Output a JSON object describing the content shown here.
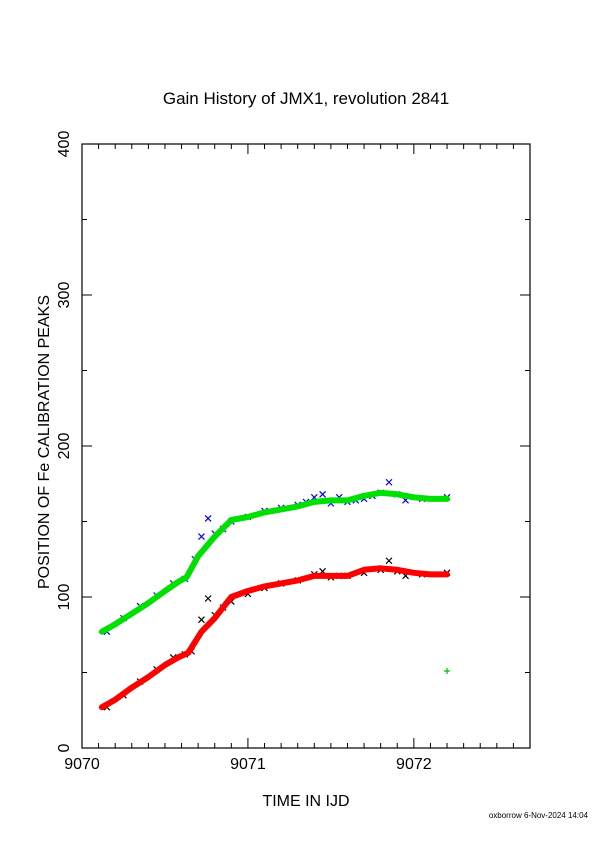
{
  "chart_data": {
    "type": "line",
    "title": "Gain History of JMX1, revolution 2841",
    "xlabel": "TIME IN IJD",
    "ylabel": "POSITION OF Fe CALIBRATION PEAKS",
    "xlim": [
      9070,
      9072.7
    ],
    "ylim": [
      0,
      400
    ],
    "x_ticks": [
      "9070",
      "9071",
      "9072"
    ],
    "y_ticks": [
      "0",
      "100",
      "200",
      "300",
      "400"
    ],
    "grid": false,
    "series": [
      {
        "color": "#0000ff",
        "marker": "x",
        "points": [
          [
            9070.15,
            77
          ],
          [
            9070.25,
            86
          ],
          [
            9070.35,
            94
          ],
          [
            9070.45,
            101
          ],
          [
            9070.55,
            109
          ],
          [
            9070.62,
            112
          ],
          [
            9070.68,
            125
          ],
          [
            9070.72,
            140
          ],
          [
            9070.76,
            152
          ],
          [
            9070.8,
            142
          ],
          [
            9070.85,
            145
          ],
          [
            9070.9,
            150
          ],
          [
            9071.0,
            153
          ],
          [
            9071.1,
            157
          ],
          [
            9071.2,
            159
          ],
          [
            9071.3,
            161
          ],
          [
            9071.35,
            163
          ],
          [
            9071.4,
            166
          ],
          [
            9071.45,
            168
          ],
          [
            9071.5,
            162
          ],
          [
            9071.55,
            166
          ],
          [
            9071.6,
            163
          ],
          [
            9071.65,
            164
          ],
          [
            9071.7,
            165
          ],
          [
            9071.75,
            167
          ],
          [
            9071.8,
            169
          ],
          [
            9071.85,
            176
          ],
          [
            9071.9,
            168
          ],
          [
            9071.95,
            164
          ],
          [
            9072.05,
            165
          ],
          [
            9072.2,
            166
          ]
        ]
      },
      {
        "color": "#00e000",
        "marker": "line",
        "points": [
          [
            9070.12,
            77
          ],
          [
            9070.2,
            82
          ],
          [
            9070.3,
            89
          ],
          [
            9070.4,
            96
          ],
          [
            9070.5,
            104
          ],
          [
            9070.58,
            110
          ],
          [
            9070.63,
            113
          ],
          [
            9070.7,
            127
          ],
          [
            9070.8,
            140
          ],
          [
            9070.9,
            151
          ],
          [
            9071.0,
            153
          ],
          [
            9071.1,
            156
          ],
          [
            9071.2,
            158
          ],
          [
            9071.3,
            160
          ],
          [
            9071.4,
            163
          ],
          [
            9071.5,
            164
          ],
          [
            9071.6,
            164
          ],
          [
            9071.7,
            167
          ],
          [
            9071.8,
            169
          ],
          [
            9071.9,
            168
          ],
          [
            9072.0,
            166
          ],
          [
            9072.1,
            165
          ],
          [
            9072.2,
            165
          ]
        ]
      },
      {
        "color": "#000000",
        "marker": "x",
        "points": [
          [
            9070.15,
            27
          ],
          [
            9070.25,
            35
          ],
          [
            9070.35,
            44
          ],
          [
            9070.45,
            52
          ],
          [
            9070.55,
            60
          ],
          [
            9070.62,
            62
          ],
          [
            9070.66,
            64
          ],
          [
            9070.72,
            85
          ],
          [
            9070.76,
            99
          ],
          [
            9070.8,
            88
          ],
          [
            9070.85,
            93
          ],
          [
            9070.9,
            97
          ],
          [
            9071.0,
            102
          ],
          [
            9071.1,
            106
          ],
          [
            9071.2,
            109
          ],
          [
            9071.3,
            111
          ],
          [
            9071.4,
            115
          ],
          [
            9071.45,
            117
          ],
          [
            9071.5,
            113
          ],
          [
            9071.55,
            114
          ],
          [
            9071.6,
            114
          ],
          [
            9071.7,
            116
          ],
          [
            9071.8,
            118
          ],
          [
            9071.85,
            124
          ],
          [
            9071.9,
            117
          ],
          [
            9071.95,
            114
          ],
          [
            9072.05,
            115
          ],
          [
            9072.2,
            116
          ]
        ]
      },
      {
        "color": "#ff0000",
        "marker": "line",
        "points": [
          [
            9070.12,
            27
          ],
          [
            9070.2,
            32
          ],
          [
            9070.3,
            40
          ],
          [
            9070.4,
            47
          ],
          [
            9070.5,
            55
          ],
          [
            9070.58,
            60
          ],
          [
            9070.64,
            63
          ],
          [
            9070.72,
            77
          ],
          [
            9070.8,
            86
          ],
          [
            9070.9,
            100
          ],
          [
            9071.0,
            104
          ],
          [
            9071.1,
            107
          ],
          [
            9071.2,
            109
          ],
          [
            9071.3,
            111
          ],
          [
            9071.4,
            114
          ],
          [
            9071.5,
            114
          ],
          [
            9071.6,
            114
          ],
          [
            9071.7,
            118
          ],
          [
            9071.8,
            119
          ],
          [
            9071.9,
            118
          ],
          [
            9072.0,
            116
          ],
          [
            9072.1,
            115
          ],
          [
            9072.2,
            115
          ]
        ]
      },
      {
        "color": "#00c000",
        "marker": "+",
        "points": [
          [
            9072.2,
            51
          ]
        ]
      }
    ]
  },
  "footer": "oxborrow  6-Nov-2024 14:04"
}
